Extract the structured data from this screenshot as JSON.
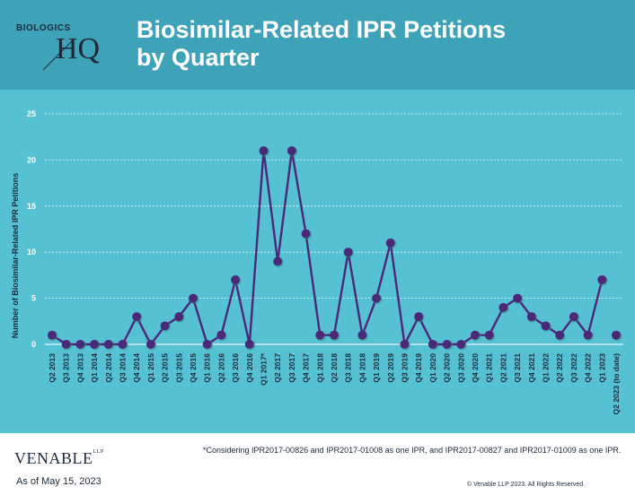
{
  "logo": {
    "top_text": "BIOLOGICS",
    "main_text": "HQ"
  },
  "title": {
    "line1": "Biosimilar-Related IPR Petitions",
    "line2": "by Quarter"
  },
  "chart_data": {
    "type": "line",
    "ylabel": "Number of Biosimilar-Related IPR Petitions",
    "ylim": [
      0,
      25
    ],
    "yticks": [
      0,
      5,
      10,
      15,
      20,
      25
    ],
    "grid": "horizontal dashed",
    "series_color": "#4b2878",
    "categories": [
      "Q2 2013",
      "Q3 2013",
      "Q4 2013",
      "Q1 2014",
      "Q2 2014",
      "Q3 2014",
      "Q4 2014",
      "Q1 2015",
      "Q2 2015",
      "Q3 2015",
      "Q4 2015",
      "Q1 2016",
      "Q2 2016",
      "Q3 2016",
      "Q4 2016",
      "Q1 2017*",
      "Q2 2017",
      "Q3 2017",
      "Q4 2017",
      "Q1 2018",
      "Q2 2018",
      "Q3 2018",
      "Q4 2018",
      "Q1 2019",
      "Q2 2019",
      "Q3 2019",
      "Q4 2019",
      "Q1 2020",
      "Q2 2020",
      "Q3 2020",
      "Q4 2020",
      "Q1 2021",
      "Q2 2021",
      "Q3 2021",
      "Q4 2021",
      "Q1 2022",
      "Q2 2022",
      "Q3 2022",
      "Q4 2022",
      "Q1 2023",
      "Q2 2023 (to date)"
    ],
    "values": [
      1,
      0,
      0,
      0,
      0,
      0,
      3,
      0,
      2,
      3,
      5,
      0,
      1,
      7,
      0,
      21,
      9,
      21,
      12,
      1,
      1,
      10,
      1,
      5,
      11,
      0,
      3,
      0,
      0,
      0,
      1,
      1,
      4,
      5,
      3,
      2,
      1,
      3,
      1,
      7,
      1
    ],
    "connected_until_index": 39
  },
  "footnote": "*Considering IPR2017-00826 and IPR2017-01008 as one IPR, and IPR2017-00827 and IPR2017-01009 as one IPR.",
  "footer": {
    "brand": "VENABLE",
    "brand_suffix": "LLP",
    "as_of": "As of May 15, 2023",
    "copyright": "© Venable LLP 2023. All Rights Reserved."
  }
}
